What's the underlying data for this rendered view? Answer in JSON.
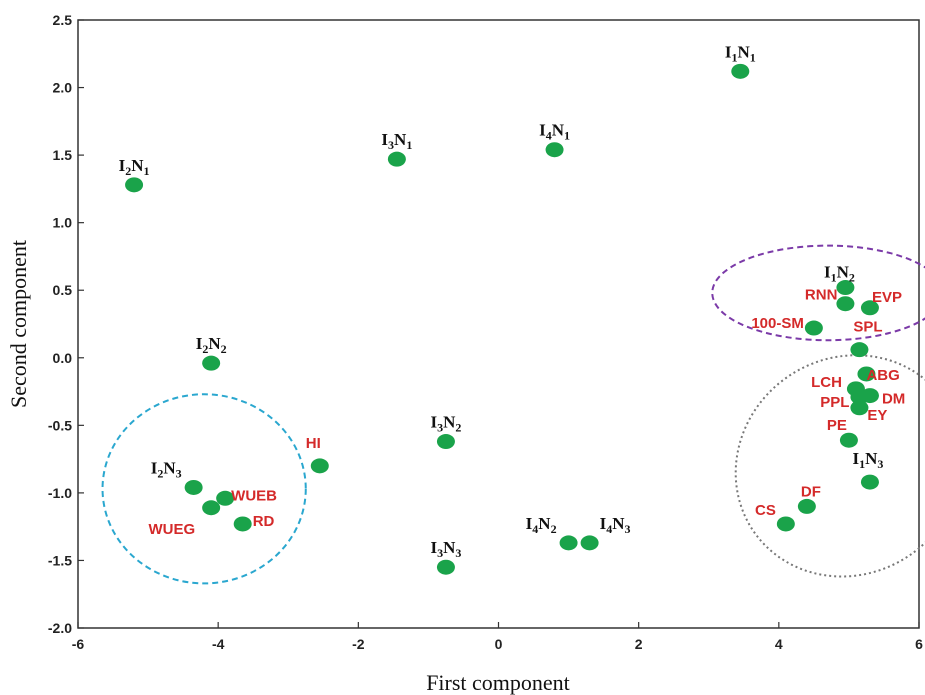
{
  "chart_data": {
    "type": "scatter",
    "title": "",
    "xlabel": "First component",
    "ylabel": "Second component",
    "xlim": [
      -6,
      6
    ],
    "ylim": [
      -2.0,
      2.5
    ],
    "xticks": [
      "-6",
      "-4",
      "-2",
      "0",
      "2",
      "4",
      "6"
    ],
    "yticks": [
      "2.5",
      "2.0",
      "1.5",
      "1.0",
      "0.5",
      "0.0",
      "-0.5",
      "-1.0",
      "-1.5",
      "-2.0"
    ],
    "point_color": "#1aa34a",
    "treatment_label_color": "#111111",
    "variable_label_color": "#d42a2a",
    "treatments": [
      {
        "base": "I",
        "a": "1",
        "mid": "N",
        "b": "1",
        "x": 3.45,
        "y": 2.12
      },
      {
        "base": "I",
        "a": "2",
        "mid": "N",
        "b": "1",
        "x": -5.2,
        "y": 1.28
      },
      {
        "base": "I",
        "a": "3",
        "mid": "N",
        "b": "1",
        "x": -1.45,
        "y": 1.47
      },
      {
        "base": "I",
        "a": "4",
        "mid": "N",
        "b": "1",
        "x": 0.8,
        "y": 1.54
      },
      {
        "base": "I",
        "a": "1",
        "mid": "N",
        "b": "2",
        "x": 4.95,
        "y": 0.52
      },
      {
        "base": "I",
        "a": "2",
        "mid": "N",
        "b": "2",
        "x": -4.1,
        "y": -0.04
      },
      {
        "base": "I",
        "a": "3",
        "mid": "N",
        "b": "2",
        "x": -0.75,
        "y": -0.62
      },
      {
        "base": "I",
        "a": "2",
        "mid": "N",
        "b": "3",
        "x": -4.35,
        "y": -0.96
      },
      {
        "base": "I",
        "a": "1",
        "mid": "N",
        "b": "3",
        "x": 5.3,
        "y": -0.92
      },
      {
        "base": "I",
        "a": "3",
        "mid": "N",
        "b": "3",
        "x": -0.75,
        "y": -1.55
      },
      {
        "base": "I",
        "a": "4",
        "mid": "N",
        "b": "2",
        "x": 1.0,
        "y": -1.37
      },
      {
        "base": "I",
        "a": "4",
        "mid": "N",
        "b": "3",
        "x": 1.3,
        "y": -1.37
      }
    ],
    "variables": [
      {
        "name": "RNN",
        "x": 4.95,
        "y": 0.4
      },
      {
        "name": "EVP",
        "x": 5.3,
        "y": 0.37
      },
      {
        "name": "100-SM",
        "x": 4.5,
        "y": 0.22
      },
      {
        "name": "SPL",
        "x": 5.15,
        "y": 0.06
      },
      {
        "name": "ABG",
        "x": 5.25,
        "y": -0.12
      },
      {
        "name": "LCH",
        "x": 5.1,
        "y": -0.23
      },
      {
        "name": "DM",
        "x": 5.3,
        "y": -0.28
      },
      {
        "name": "PPL",
        "x": 5.15,
        "y": -0.29
      },
      {
        "name": "EY",
        "x": 5.15,
        "y": -0.37
      },
      {
        "name": "PE",
        "x": 5.0,
        "y": -0.61
      },
      {
        "name": "DF",
        "x": 4.4,
        "y": -1.1
      },
      {
        "name": "CS",
        "x": 4.1,
        "y": -1.23
      },
      {
        "name": "HI",
        "x": -2.55,
        "y": -0.8
      },
      {
        "name": "WUEB",
        "x": -3.9,
        "y": -1.04
      },
      {
        "name": "WUEG",
        "x": -4.1,
        "y": -1.11
      },
      {
        "name": "RD",
        "x": -3.65,
        "y": -1.23
      }
    ],
    "grouping_ellipses": [
      {
        "color": "#7b3aa8",
        "cx": 4.7,
        "cy": 0.48,
        "rx": 1.65,
        "ry": 0.35,
        "rotate": 0
      },
      {
        "color": "#777777",
        "cx": 5.0,
        "cy": -0.8,
        "rx": 1.65,
        "ry": 0.8,
        "rotate": -35
      },
      {
        "color": "#2aa7cf",
        "cx": -4.2,
        "cy": -0.97,
        "rx": 1.45,
        "ry": 0.7,
        "rotate": 0
      }
    ]
  }
}
